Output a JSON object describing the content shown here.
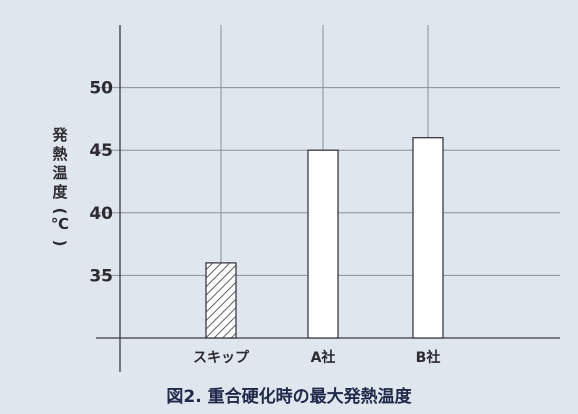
{
  "chart_data": {
    "type": "bar",
    "title": "図2. 重合硬化時の最大発熱温度",
    "ylabel": "発熱温度(℃)",
    "xlabel": "",
    "categories": [
      "スキップ",
      "A社",
      "B社"
    ],
    "values": [
      36,
      45,
      46
    ],
    "ylim": [
      30,
      55
    ],
    "yticks": [
      35,
      40,
      45,
      50
    ],
    "grid": true,
    "colors": {
      "background": "#dfe6ee",
      "axis": "#3a3a44",
      "grid": "#8a8f98",
      "bar_fill": "#ffffff",
      "hatch": "#3a3a44"
    }
  }
}
